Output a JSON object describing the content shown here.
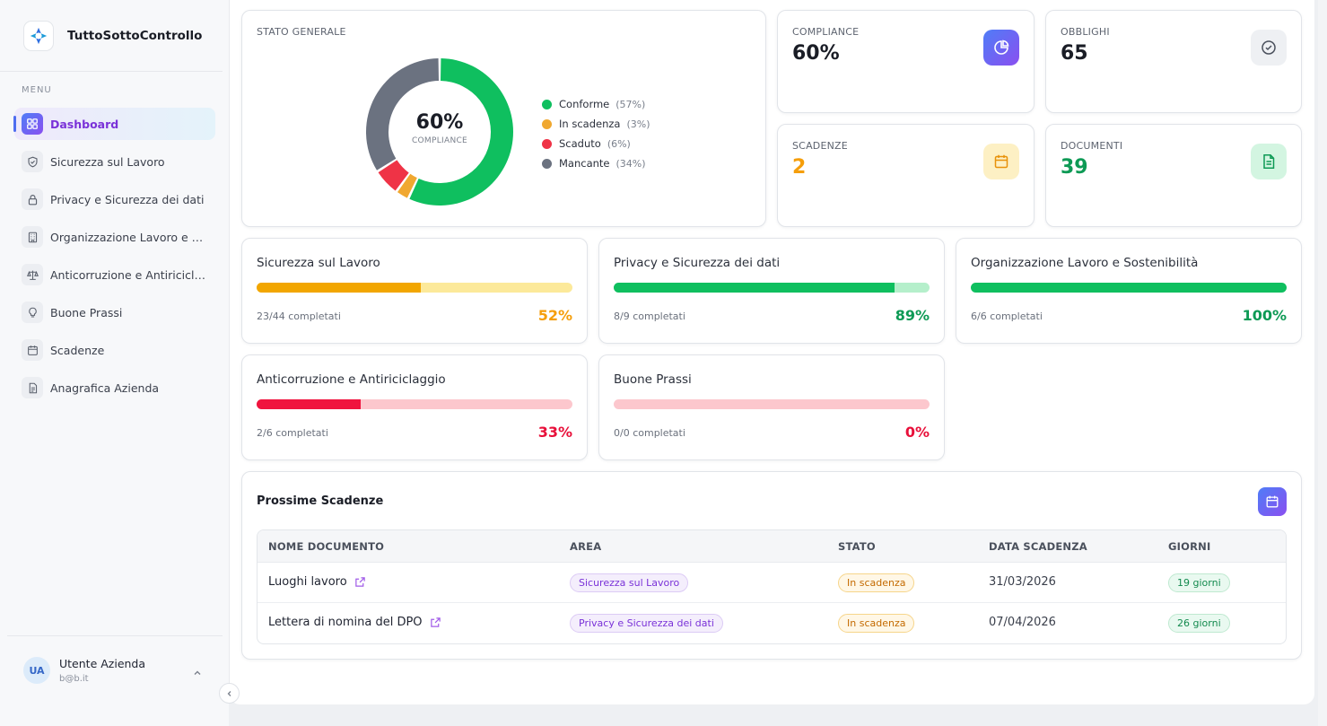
{
  "app": {
    "name": "TuttoSottoControllo"
  },
  "sidebar": {
    "menu_label": "MENU",
    "items": [
      {
        "label": "Dashboard",
        "icon": "grid-icon",
        "active": true
      },
      {
        "label": "Sicurezza sul Lavoro",
        "icon": "shield-icon"
      },
      {
        "label": "Privacy e Sicurezza dei dati",
        "icon": "lock-icon"
      },
      {
        "label": "Organizzazione Lavoro e Sostenibilità",
        "icon": "building-icon"
      },
      {
        "label": "Anticorruzione e Antiriciclaggio",
        "icon": "scale-icon"
      },
      {
        "label": "Buone Prassi",
        "icon": "lightbulb-icon"
      },
      {
        "label": "Scadenze",
        "icon": "calendar-icon"
      },
      {
        "label": "Anagrafica Azienda",
        "icon": "document-icon"
      }
    ],
    "user": {
      "initials": "UA",
      "name": "Utente Azienda",
      "email": "b@b.it"
    }
  },
  "stato_generale": {
    "title": "STATO GENERALE",
    "center_value": "60%",
    "center_label": "COMPLIANCE",
    "legend": [
      {
        "name": "Conforme",
        "pct": "(57%)",
        "value": 57,
        "color": "#0fbf5f"
      },
      {
        "name": "In scadenza",
        "pct": "(3%)",
        "value": 3,
        "color": "#f0a830"
      },
      {
        "name": "Scaduto",
        "pct": "(6%)",
        "value": 6,
        "color": "#ef3346"
      },
      {
        "name": "Mancante",
        "pct": "(34%)",
        "value": 34,
        "color": "#6b7280"
      }
    ]
  },
  "stats": {
    "compliance": {
      "label": "COMPLIANCE",
      "value": "60%",
      "color": "#1a1d26",
      "icon": "pie-chart-icon"
    },
    "obblighi": {
      "label": "OBBLIGHI",
      "value": "65",
      "color": "#1a1d26",
      "icon": "check-circle-icon"
    },
    "scadenze": {
      "label": "SCADENZE",
      "value": "2",
      "color": "#f59e0b",
      "icon": "calendar-icon"
    },
    "documenti": {
      "label": "DOCUMENTI",
      "value": "39",
      "color": "#0e9a55",
      "icon": "file-text-icon"
    }
  },
  "areas": [
    {
      "title": "Sicurezza sul Lavoro",
      "count": "23/44 completati",
      "pct": "52%",
      "value": 0.52,
      "fill": "#f2a600",
      "track": "#fce99a",
      "pct_color": "#f59e0b"
    },
    {
      "title": "Privacy e Sicurezza dei dati",
      "count": "8/9 completati",
      "pct": "89%",
      "value": 0.89,
      "fill": "#0fbf5f",
      "track": "#b5efcb",
      "pct_color": "#0e9a55"
    },
    {
      "title": "Organizzazione Lavoro e Sostenibilità",
      "count": "6/6 completati",
      "pct": "100%",
      "value": 1.0,
      "fill": "#0fbf5f",
      "track": "#b5efcb",
      "pct_color": "#0e9a55"
    },
    {
      "title": "Anticorruzione e Antiriciclaggio",
      "count": "2/6 completati",
      "pct": "33%",
      "value": 0.33,
      "fill": "#f0143e",
      "track": "#fcc7cd",
      "pct_color": "#e8103a"
    },
    {
      "title": "Buone Prassi",
      "count": "0/0 completati",
      "pct": "0%",
      "value": 0.0,
      "fill": "#f0143e",
      "track": "#fcc7cd",
      "pct_color": "#e8103a"
    }
  ],
  "scadenze": {
    "title": "Prossime Scadenze",
    "columns": [
      "NOME DOCUMENTO",
      "AREA",
      "STATO",
      "DATA SCADENZA",
      "GIORNI"
    ],
    "rows": [
      {
        "nome": "Luoghi lavoro",
        "area": "Sicurezza sul Lavoro",
        "stato": "In scadenza",
        "data": "31/03/2026",
        "giorni": "19 giorni"
      },
      {
        "nome": "Lettera di nomina del DPO",
        "area": "Privacy e Sicurezza dei dati",
        "stato": "In scadenza",
        "data": "07/04/2026",
        "giorni": "26 giorni"
      }
    ]
  }
}
